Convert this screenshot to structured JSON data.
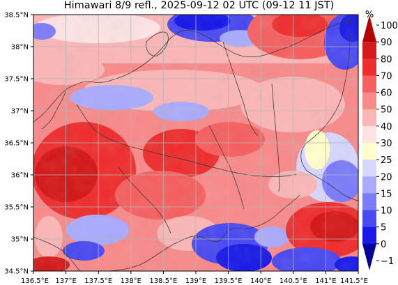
{
  "title": "Himawari 8/9 refl., 2025-09-12 02 UTC (09-12 11 JST)",
  "map": {
    "lon_range": [
      136.5,
      141.5
    ],
    "lat_range": [
      34.5,
      38.5
    ],
    "lon_ticks": [
      "136.5°E",
      "137°E",
      "137.5°E",
      "138°E",
      "138.5°E",
      "139°E",
      "139.5°E",
      "140°E",
      "140.5°E",
      "141°E",
      "141.5°E"
    ],
    "lat_ticks": [
      "38.5°N",
      "38°N",
      "37.5°N",
      "37°N",
      "36.5°N",
      "36°N",
      "35.5°N",
      "35°N",
      "34.5°N"
    ],
    "grid": true,
    "colors": {
      "grid": "#b4b4b4",
      "coast": "#3a3a3a"
    }
  },
  "colorbar": {
    "unit": "%",
    "labels": [
      "100",
      "90",
      "80",
      "70",
      "60",
      "50",
      "40",
      "30",
      "25",
      "20",
      "15",
      "10",
      "5",
      "0",
      "−1"
    ],
    "colors": [
      "#b30000",
      "#d41a1a",
      "#ee2e2e",
      "#f56060",
      "#f88a8a",
      "#fbb6b6",
      "#fde3e3",
      "#ffffcc",
      "#d6d6fe",
      "#aaaaff",
      "#7c7cf8",
      "#4a4af2",
      "#1a1ae8",
      "#000099"
    ]
  }
}
